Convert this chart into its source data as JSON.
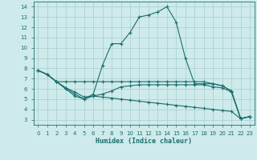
{
  "title": "",
  "xlabel": "Humidex (Indice chaleur)",
  "background_color": "#ceeaea",
  "grid_color": "#a8cece",
  "line_color": "#1a6e6e",
  "xlim": [
    -0.5,
    23.5
  ],
  "ylim": [
    2.5,
    14.5
  ],
  "yticks": [
    3,
    4,
    5,
    6,
    7,
    8,
    9,
    10,
    11,
    12,
    13,
    14
  ],
  "xticks": [
    0,
    1,
    2,
    3,
    4,
    5,
    6,
    7,
    8,
    9,
    10,
    11,
    12,
    13,
    14,
    15,
    16,
    17,
    18,
    19,
    20,
    21,
    22,
    23
  ],
  "series": [
    {
      "x": [
        0,
        1,
        2,
        3,
        4,
        5,
        6,
        7,
        8,
        9,
        10,
        11,
        12,
        13,
        14,
        15,
        16,
        17,
        18,
        19,
        20,
        21,
        22,
        23
      ],
      "y": [
        7.8,
        7.4,
        6.7,
        6.0,
        5.3,
        5.0,
        5.5,
        8.3,
        10.4,
        10.4,
        11.5,
        13.0,
        13.2,
        13.5,
        14.0,
        12.5,
        9.0,
        6.5,
        6.5,
        6.5,
        6.3,
        5.8,
        3.1,
        3.3
      ]
    },
    {
      "x": [
        0,
        1,
        2,
        3,
        4,
        5,
        6,
        7,
        8,
        9,
        10,
        11,
        12,
        13,
        14,
        15,
        16,
        17,
        18,
        19,
        20,
        21,
        22,
        23
      ],
      "y": [
        7.8,
        7.4,
        6.7,
        6.7,
        6.7,
        6.7,
        6.7,
        6.7,
        6.7,
        6.7,
        6.7,
        6.7,
        6.7,
        6.7,
        6.7,
        6.7,
        6.7,
        6.7,
        6.7,
        6.5,
        6.3,
        5.8,
        3.1,
        3.3
      ]
    },
    {
      "x": [
        0,
        1,
        2,
        3,
        4,
        5,
        6,
        7,
        8,
        9,
        10,
        11,
        12,
        13,
        14,
        15,
        16,
        17,
        18,
        19,
        20,
        21,
        22,
        23
      ],
      "y": [
        7.8,
        7.4,
        6.7,
        6.1,
        5.7,
        5.2,
        5.3,
        5.5,
        5.8,
        6.2,
        6.3,
        6.4,
        6.4,
        6.4,
        6.4,
        6.4,
        6.4,
        6.4,
        6.4,
        6.2,
        6.1,
        5.7,
        3.1,
        3.3
      ]
    },
    {
      "x": [
        0,
        1,
        2,
        3,
        4,
        5,
        6,
        7,
        8,
        9,
        10,
        11,
        12,
        13,
        14,
        15,
        16,
        17,
        18,
        19,
        20,
        21,
        22,
        23
      ],
      "y": [
        7.8,
        7.4,
        6.7,
        6.1,
        5.5,
        5.0,
        5.3,
        5.2,
        5.1,
        5.0,
        4.9,
        4.8,
        4.7,
        4.6,
        4.5,
        4.4,
        4.3,
        4.2,
        4.1,
        4.0,
        3.9,
        3.8,
        3.1,
        3.3
      ]
    }
  ]
}
